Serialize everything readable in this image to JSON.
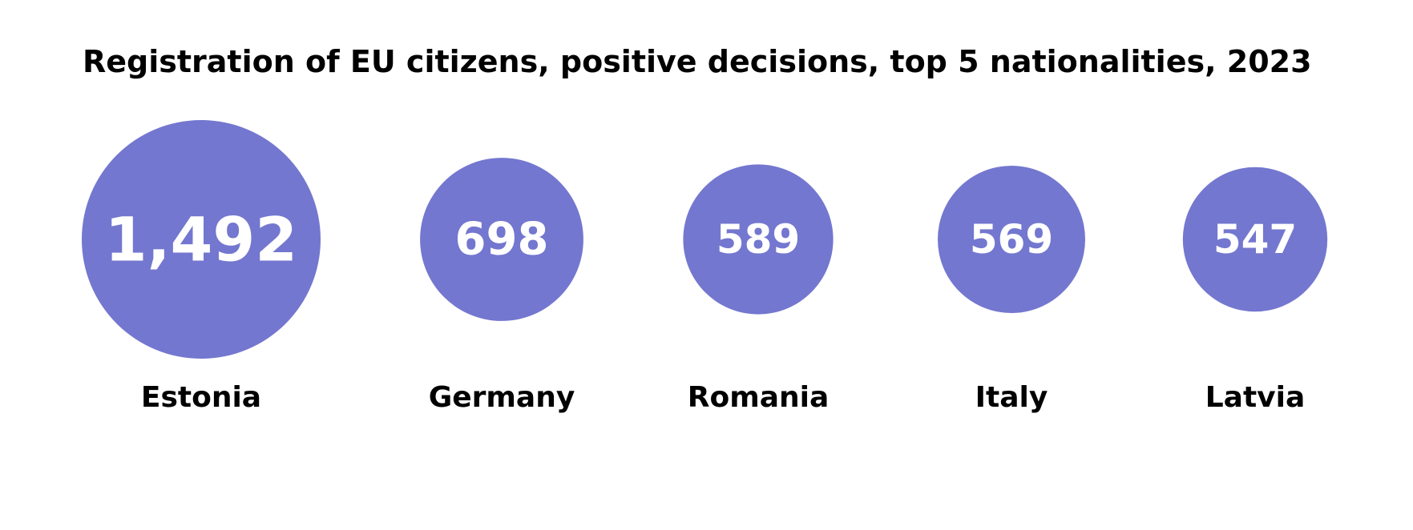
{
  "chart_data": {
    "type": "bubble",
    "title": "Registration of EU citizens, positive decisions, top 5 nationalities, 2023",
    "categories": [
      "Estonia",
      "Germany",
      "Romania",
      "Italy",
      "Latvia"
    ],
    "values": [
      1492,
      698,
      589,
      569,
      547
    ],
    "value_labels": [
      "1,492",
      "698",
      "589",
      "569",
      "547"
    ],
    "bubble_color": "#7377cf",
    "value_label_color": "#ffffff",
    "category_label_color": "#000000",
    "legend": "none",
    "grid": false
  }
}
